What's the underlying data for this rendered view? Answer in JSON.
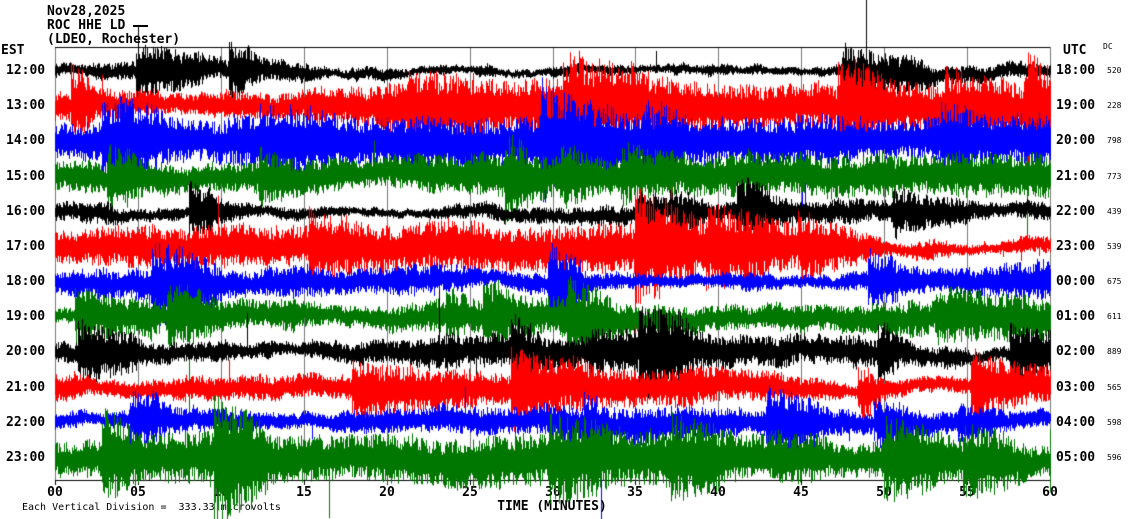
{
  "header": {
    "date": "Nov28,2025",
    "station": "ROC HHE LD",
    "location": "(LDEO, Rochester)"
  },
  "axes": {
    "left_label": "EST",
    "right_label": "UTC",
    "dc_label": "DC",
    "x_title": "TIME (MINUTES)",
    "x_ticks": [
      "00",
      "05",
      "10",
      "15",
      "20",
      "25",
      "30",
      "35",
      "40",
      "45",
      "50",
      "55",
      "60"
    ]
  },
  "footer": {
    "scale_note": "Each Vertical Division =  333.33 microvolts"
  },
  "colors": {
    "black": "#000000",
    "red": "#ff0000",
    "blue": "#0000ff",
    "green": "#007700",
    "grid": "#777777",
    "axis": "#000000"
  },
  "chart_data": {
    "type": "line",
    "subtype": "seismogram-helicorder",
    "title": "ROC HHE LD (LDEO, Rochester) Nov28,2025",
    "xlabel": "TIME (MINUTES)",
    "x_range": [
      0,
      60
    ],
    "x_tick_interval": 5,
    "grid": true,
    "vertical_division_microvolts": 333.33,
    "left_timezone": "EST",
    "right_timezone": "UTC",
    "rows": [
      {
        "est": "12:00",
        "utc": "18:00",
        "dc": 520,
        "color": "black"
      },
      {
        "est": "13:00",
        "utc": "19:00",
        "dc": 228,
        "color": "red"
      },
      {
        "est": "14:00",
        "utc": "20:00",
        "dc": 798,
        "color": "blue"
      },
      {
        "est": "15:00",
        "utc": "21:00",
        "dc": 773,
        "color": "green"
      },
      {
        "est": "16:00",
        "utc": "22:00",
        "dc": 439,
        "color": "black"
      },
      {
        "est": "17:00",
        "utc": "23:00",
        "dc": 539,
        "color": "red"
      },
      {
        "est": "18:00",
        "utc": "00:00",
        "dc": 675,
        "color": "blue"
      },
      {
        "est": "19:00",
        "utc": "01:00",
        "dc": 611,
        "color": "green"
      },
      {
        "est": "20:00",
        "utc": "02:00",
        "dc": 889,
        "color": "black"
      },
      {
        "est": "21:00",
        "utc": "03:00",
        "dc": 565,
        "color": "red"
      },
      {
        "est": "22:00",
        "utc": "04:00",
        "dc": 598,
        "color": "blue"
      },
      {
        "est": "23:00",
        "utc": "05:00",
        "dc": 596,
        "color": "green"
      }
    ]
  }
}
